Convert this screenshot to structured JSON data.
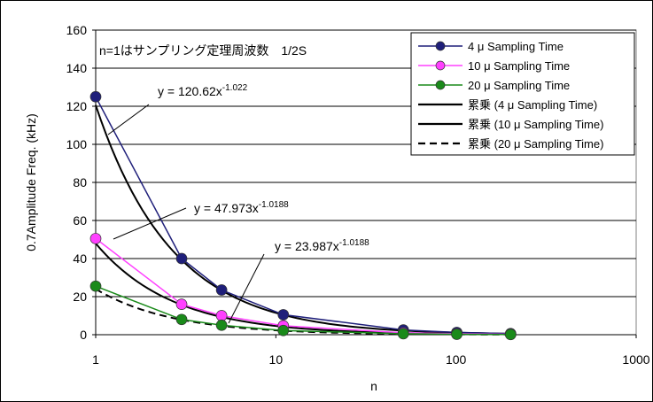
{
  "chart_data": {
    "type": "line",
    "xscale": "log",
    "xlim": [
      1,
      1000
    ],
    "ylim": [
      0,
      160
    ],
    "xticks": [
      "1",
      "10",
      "100",
      "1000"
    ],
    "yticks": [
      "0",
      "20",
      "40",
      "60",
      "80",
      "100",
      "120",
      "140",
      "160"
    ],
    "xlabel": "n",
    "ylabel": "0.7Amplitude Freq. (kHz)",
    "grid": "horizontal",
    "legend_position": "top-right",
    "note": "n=1はサンプリング定理周波数　1/2S",
    "series": [
      {
        "name": "4 μ Sampling Time",
        "color": "#1f1f7a",
        "style": "line-marker",
        "x": [
          1,
          3,
          5,
          11,
          51,
          101,
          201
        ],
        "values": [
          125,
          40,
          23.5,
          10.5,
          2.5,
          1.2,
          0.6
        ]
      },
      {
        "name": "10 μ Sampling Time",
        "color": "#ff40ff",
        "style": "line-marker",
        "x": [
          1,
          3,
          5,
          11,
          51,
          101,
          201
        ],
        "values": [
          50.5,
          16,
          10,
          4.7,
          1,
          0.5,
          0.25
        ]
      },
      {
        "name": "20 μ Sampling Time",
        "color": "#1a8a1a",
        "style": "line-marker",
        "x": [
          1,
          3,
          5,
          11,
          51,
          101,
          201
        ],
        "values": [
          25.5,
          8,
          5,
          2.2,
          0.5,
          0.25,
          0.12
        ]
      },
      {
        "name": "累乗 (4 μ Sampling Time)",
        "color": "#000000",
        "style": "solid",
        "fit": [
          120.62,
          -1.022
        ]
      },
      {
        "name": "累乗 (10 μ Sampling Time)",
        "color": "#000000",
        "style": "solid",
        "fit": [
          47.973,
          -1.0188
        ]
      },
      {
        "name": "累乗 (20 μ Sampling Time)",
        "color": "#000000",
        "style": "dashed",
        "fit": [
          23.987,
          -1.0188
        ]
      }
    ],
    "annotations": [
      {
        "base": "y = 120.62x",
        "exp": "-1.022"
      },
      {
        "base": "y = 47.973x",
        "exp": "-1.0188"
      },
      {
        "base": "y = 23.987x",
        "exp": "-1.0188"
      }
    ]
  }
}
